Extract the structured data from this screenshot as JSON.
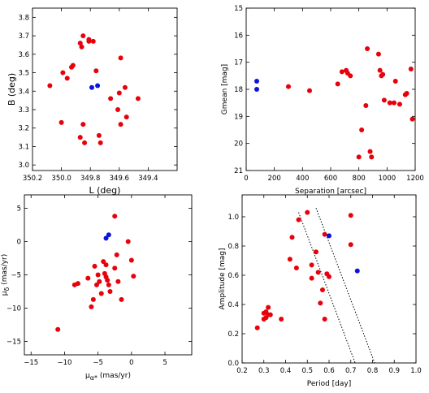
{
  "colors": {
    "red": "#e8000b",
    "blue": "#0b14d9",
    "axis": "#000000"
  },
  "chart_data": [
    {
      "id": "lb",
      "type": "scatter",
      "xlabel": "L (deg)",
      "ylabel": "B (deg)",
      "xlim": [
        350.2,
        349.2
      ],
      "ylim": [
        2.97,
        3.85
      ],
      "xticks": [
        350.2,
        350.0,
        349.8,
        349.6,
        349.4
      ],
      "xtick_labels": [
        "350.2",
        "350.0",
        "349.8",
        "349.6",
        "349.4"
      ],
      "yticks": [
        3.0,
        3.1,
        3.2,
        3.3,
        3.4,
        3.5,
        3.6,
        3.7,
        3.8
      ],
      "ytick_labels": [
        "3.0",
        "3.1",
        "3.2",
        "3.3",
        "3.4",
        "3.5",
        "3.6",
        "3.7",
        "3.8"
      ],
      "series": [
        {
          "color": "red",
          "points": [
            [
              350.08,
              3.43
            ],
            [
              349.99,
              3.5
            ],
            [
              350.0,
              3.23
            ],
            [
              349.96,
              3.47
            ],
            [
              349.93,
              3.53
            ],
            [
              349.92,
              3.54
            ],
            [
              349.87,
              3.66
            ],
            [
              349.86,
              3.64
            ],
            [
              349.85,
              3.7
            ],
            [
              349.81,
              3.67
            ],
            [
              349.81,
              3.68
            ],
            [
              349.78,
              3.67
            ],
            [
              349.76,
              3.51
            ],
            [
              349.87,
              3.15
            ],
            [
              349.85,
              3.22
            ],
            [
              349.84,
              3.12
            ],
            [
              349.74,
              3.16
            ],
            [
              349.73,
              3.12
            ],
            [
              349.66,
              3.36
            ],
            [
              349.61,
              3.3
            ],
            [
              349.6,
              3.39
            ],
            [
              349.59,
              3.58
            ],
            [
              349.59,
              3.22
            ],
            [
              349.56,
              3.42
            ],
            [
              349.55,
              3.26
            ],
            [
              349.47,
              3.36
            ]
          ]
        },
        {
          "color": "blue",
          "points": [
            [
              349.79,
              3.42
            ],
            [
              349.75,
              3.43
            ]
          ]
        }
      ]
    },
    {
      "id": "sep",
      "type": "scatter",
      "xlabel": "Separation [arcsec]",
      "ylabel": "Gmean [mag]",
      "xlim": [
        0,
        1200
      ],
      "ylim": [
        21,
        15
      ],
      "xticks": [
        0,
        200,
        400,
        600,
        800,
        1000,
        1200
      ],
      "xtick_labels": [
        "0",
        "200",
        "400",
        "600",
        "800",
        "1000",
        "1200"
      ],
      "yticks": [
        15,
        16,
        17,
        18,
        19,
        20,
        21
      ],
      "ytick_labels": [
        "15",
        "16",
        "17",
        "18",
        "19",
        "20",
        "21"
      ],
      "series": [
        {
          "color": "red",
          "points": [
            [
              300,
              17.9
            ],
            [
              450,
              18.05
            ],
            [
              650,
              17.8
            ],
            [
              680,
              17.35
            ],
            [
              710,
              17.3
            ],
            [
              720,
              17.4
            ],
            [
              740,
              17.5
            ],
            [
              800,
              20.5
            ],
            [
              820,
              19.5
            ],
            [
              850,
              18.6
            ],
            [
              860,
              16.5
            ],
            [
              880,
              20.3
            ],
            [
              890,
              20.5
            ],
            [
              940,
              16.7
            ],
            [
              950,
              17.3
            ],
            [
              960,
              17.5
            ],
            [
              970,
              17.45
            ],
            [
              980,
              18.4
            ],
            [
              1020,
              18.5
            ],
            [
              1050,
              18.5
            ],
            [
              1060,
              17.7
            ],
            [
              1090,
              18.55
            ],
            [
              1130,
              18.2
            ],
            [
              1140,
              18.15
            ],
            [
              1170,
              17.25
            ],
            [
              1180,
              19.1
            ]
          ]
        },
        {
          "color": "blue",
          "points": [
            [
              75,
              17.7
            ],
            [
              75,
              18.0
            ]
          ]
        }
      ]
    },
    {
      "id": "pm",
      "type": "scatter",
      "xlabel": "μα* (mas/yr)",
      "ylabel": "μδ (mas/yr)",
      "xlim": [
        -16,
        9
      ],
      "ylim": [
        -17,
        7
      ],
      "xticks": [
        -15,
        -10,
        -5,
        0,
        5
      ],
      "xtick_labels": [
        "−15",
        "−10",
        "−5",
        "0",
        "5"
      ],
      "yticks": [
        -15,
        -10,
        -5,
        0,
        5
      ],
      "ytick_labels": [
        "−15",
        "−10",
        "−5",
        "0",
        "5"
      ],
      "series": [
        {
          "color": "red",
          "points": [
            [
              -11,
              -13.2
            ],
            [
              -8.5,
              -6.5
            ],
            [
              -8,
              -6.3
            ],
            [
              -6.5,
              -5.5
            ],
            [
              -6,
              -9.8
            ],
            [
              -5.7,
              -8.7
            ],
            [
              -5.5,
              -3.7
            ],
            [
              -5.2,
              -6.5
            ],
            [
              -5.0,
              -5.0
            ],
            [
              -4.8,
              -6.0
            ],
            [
              -4.2,
              -3.0
            ],
            [
              -4.0,
              -4.8
            ],
            [
              -3.8,
              -5.3
            ],
            [
              -3.6,
              -5.8
            ],
            [
              -3.4,
              -6.5
            ],
            [
              -3.2,
              -7.5
            ],
            [
              -2.5,
              -4.0
            ],
            [
              -2.2,
              -2.0
            ],
            [
              -2.0,
              -6.0
            ],
            [
              -2.5,
              3.8
            ],
            [
              -1.5,
              -8.7
            ],
            [
              -0.5,
              0.0
            ],
            [
              0.0,
              -2.8
            ],
            [
              0.3,
              -5.2
            ],
            [
              -3.8,
              -3.5
            ],
            [
              -4.5,
              -7.8
            ]
          ]
        },
        {
          "color": "blue",
          "points": [
            [
              -3.8,
              0.5
            ],
            [
              -3.4,
              1.0
            ]
          ]
        }
      ]
    },
    {
      "id": "pa",
      "type": "scatter",
      "xlabel": "Period [day]",
      "ylabel": "Amplitude [mag]",
      "xlim": [
        0.2,
        1.0
      ],
      "ylim": [
        0.0,
        1.15
      ],
      "xticks": [
        0.2,
        0.3,
        0.4,
        0.5,
        0.6,
        0.7,
        0.8,
        0.9,
        1.0
      ],
      "xtick_labels": [
        "0.2",
        "0.3",
        "0.4",
        "0.5",
        "0.6",
        "0.7",
        "0.8",
        "0.9",
        "1.0"
      ],
      "yticks": [
        0.0,
        0.2,
        0.4,
        0.6,
        0.8,
        1.0
      ],
      "ytick_labels": [
        "0.0",
        "0.2",
        "0.4",
        "0.6",
        "0.8",
        "1.0"
      ],
      "lines": [
        {
          "style": "dotted",
          "points": [
            [
              0.46,
              1.03
            ],
            [
              0.72,
              0.0
            ]
          ]
        },
        {
          "style": "dotted",
          "points": [
            [
              0.54,
              1.06
            ],
            [
              0.81,
              0.0
            ]
          ]
        }
      ],
      "series": [
        {
          "color": "red",
          "points": [
            [
              0.27,
              0.24
            ],
            [
              0.3,
              0.3
            ],
            [
              0.3,
              0.34
            ],
            [
              0.31,
              0.35
            ],
            [
              0.31,
              0.31
            ],
            [
              0.32,
              0.33
            ],
            [
              0.32,
              0.38
            ],
            [
              0.33,
              0.33
            ],
            [
              0.38,
              0.3
            ],
            [
              0.42,
              0.71
            ],
            [
              0.43,
              0.86
            ],
            [
              0.45,
              0.65
            ],
            [
              0.46,
              0.98
            ],
            [
              0.5,
              1.03
            ],
            [
              0.52,
              0.58
            ],
            [
              0.52,
              0.67
            ],
            [
              0.54,
              0.76
            ],
            [
              0.55,
              0.62
            ],
            [
              0.56,
              0.41
            ],
            [
              0.57,
              0.5
            ],
            [
              0.58,
              0.3
            ],
            [
              0.59,
              0.61
            ],
            [
              0.6,
              0.59
            ],
            [
              0.7,
              1.01
            ],
            [
              0.7,
              0.81
            ],
            [
              0.58,
              0.88
            ]
          ]
        },
        {
          "color": "blue",
          "points": [
            [
              0.6,
              0.87
            ],
            [
              0.73,
              0.63
            ]
          ]
        }
      ]
    }
  ]
}
